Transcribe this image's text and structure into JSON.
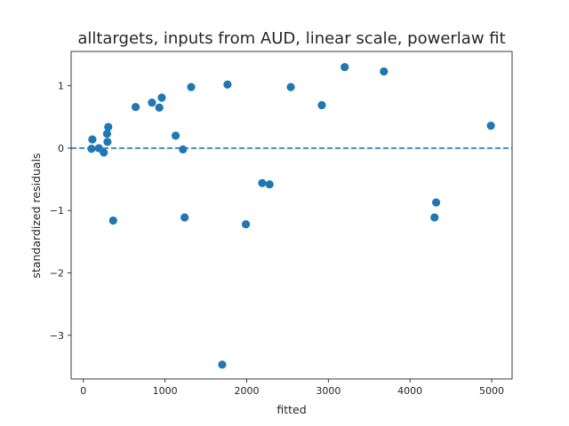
{
  "chart_data": {
    "type": "scatter",
    "title": "alltargets, inputs from AUD, linear scale, powerlaw fit",
    "xlabel": "fitted",
    "ylabel": "standardized residuals",
    "xlim": [
      -150,
      5250
    ],
    "ylim": [
      -3.7,
      1.55
    ],
    "xticks": [
      0,
      1000,
      2000,
      3000,
      4000,
      5000
    ],
    "xtick_labels": [
      "0",
      "1000",
      "2000",
      "3000",
      "4000",
      "5000"
    ],
    "yticks": [
      -3,
      -2,
      -1,
      0,
      1
    ],
    "ytick_labels": [
      "−3",
      "−2",
      "−1",
      "0",
      "1"
    ],
    "grid": false,
    "reference_line": {
      "y": 0,
      "style": "dashed",
      "color": "#1f77b4"
    },
    "marker_color": "#1f77b4",
    "points": [
      {
        "x": 100,
        "y": -0.01
      },
      {
        "x": 110,
        "y": 0.14
      },
      {
        "x": 190,
        "y": 0.0
      },
      {
        "x": 250,
        "y": -0.07
      },
      {
        "x": 290,
        "y": 0.23
      },
      {
        "x": 295,
        "y": 0.1
      },
      {
        "x": 305,
        "y": 0.34
      },
      {
        "x": 365,
        "y": -1.16
      },
      {
        "x": 640,
        "y": 0.66
      },
      {
        "x": 840,
        "y": 0.73
      },
      {
        "x": 930,
        "y": 0.65
      },
      {
        "x": 960,
        "y": 0.81
      },
      {
        "x": 1130,
        "y": 0.2
      },
      {
        "x": 1220,
        "y": -0.02
      },
      {
        "x": 1240,
        "y": -1.11
      },
      {
        "x": 1320,
        "y": 0.98
      },
      {
        "x": 1700,
        "y": -3.47
      },
      {
        "x": 1765,
        "y": 1.02
      },
      {
        "x": 1990,
        "y": -1.22
      },
      {
        "x": 2190,
        "y": -0.56
      },
      {
        "x": 2280,
        "y": -0.58
      },
      {
        "x": 2540,
        "y": 0.98
      },
      {
        "x": 2920,
        "y": 0.69
      },
      {
        "x": 3200,
        "y": 1.3
      },
      {
        "x": 3680,
        "y": 1.23
      },
      {
        "x": 4300,
        "y": -1.11
      },
      {
        "x": 4320,
        "y": -0.87
      },
      {
        "x": 4990,
        "y": 0.36
      }
    ]
  }
}
